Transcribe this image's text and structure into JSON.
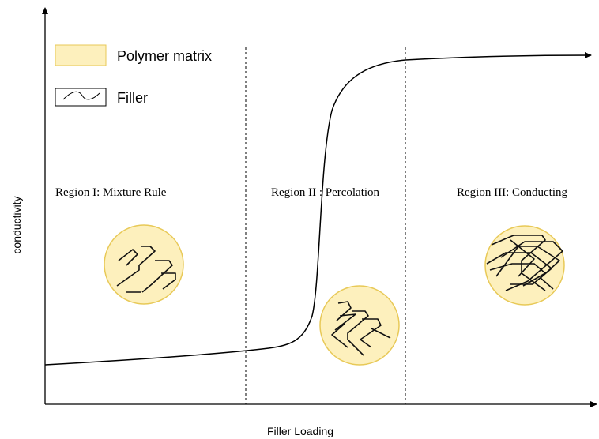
{
  "axes": {
    "x_label": "Filler Loading",
    "y_label": "conductivity"
  },
  "legend": {
    "items": [
      {
        "label": "Polymer matrix"
      },
      {
        "label": "Filler"
      }
    ]
  },
  "regions": [
    {
      "label": "Region I: Mixture Rule"
    },
    {
      "label": "Region II : Percolation"
    },
    {
      "label": "Region III: Conducting"
    }
  ]
}
